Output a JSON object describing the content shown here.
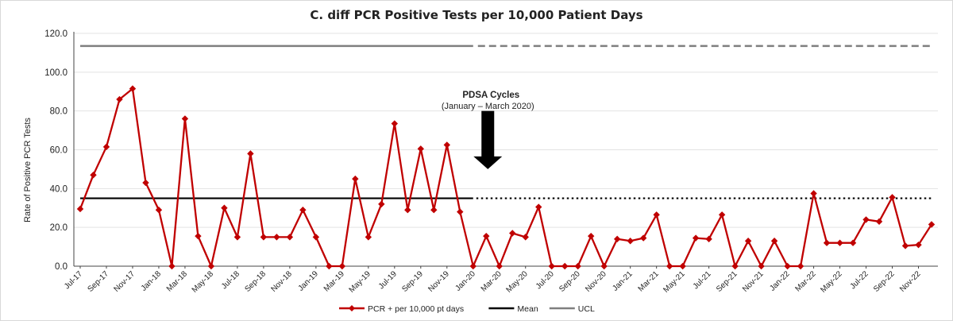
{
  "chart_data": {
    "type": "line",
    "title": "C. diff PCR Positive Tests per 10,000 Patient Days",
    "ylabel": "Rate of Positive PCR Tests",
    "xlabel": "",
    "ylim": [
      0,
      120
    ],
    "y_ticks": [
      "0.0",
      "20.0",
      "40.0",
      "60.0",
      "80.0",
      "100.0",
      "120.0"
    ],
    "x": [
      "Jul-17",
      "Aug-17",
      "Sep-17",
      "Oct-17",
      "Nov-17",
      "Dec-17",
      "Jan-18",
      "Feb-18",
      "Mar-18",
      "Apr-18",
      "May-18",
      "Jun-18",
      "Jul-18",
      "Aug-18",
      "Sep-18",
      "Oct-18",
      "Nov-18",
      "Dec-18",
      "Jan-19",
      "Feb-19",
      "Mar-19",
      "Apr-19",
      "May-19",
      "Jun-19",
      "Jul-19",
      "Aug-19",
      "Sep-19",
      "Oct-19",
      "Nov-19",
      "Dec-19",
      "Jan-20",
      "Feb-20",
      "Mar-20",
      "Apr-20",
      "May-20",
      "Jun-20",
      "Jul-20",
      "Aug-20",
      "Sep-20",
      "Oct-20",
      "Nov-20",
      "Dec-20",
      "Jan-21",
      "Feb-21",
      "Mar-21",
      "Apr-21",
      "May-21",
      "Jun-21",
      "Jul-21",
      "Aug-21",
      "Sep-21",
      "Oct-21",
      "Nov-21",
      "Dec-21",
      "Jan-22",
      "Feb-22",
      "Mar-22",
      "Apr-22",
      "May-22",
      "Jun-22",
      "Jul-22",
      "Aug-22",
      "Sep-22",
      "Oct-22",
      "Nov-22",
      "Dec-22"
    ],
    "x_tick_labels": [
      "Jul-17",
      "Sep-17",
      "Nov-17",
      "Jan-18",
      "Mar-18",
      "May-18",
      "Jul-18",
      "Sep-18",
      "Nov-18",
      "Jan-19",
      "Mar-19",
      "May-19",
      "Jul-19",
      "Sep-19",
      "Nov-19",
      "Jan-20",
      "Mar-20",
      "May-20",
      "Jul-20",
      "Sep-20",
      "Nov-20",
      "Jan-21",
      "Mar-21",
      "May-21",
      "Jul-21",
      "Sep-21",
      "Nov-21",
      "Jan-22",
      "Mar-22",
      "May-22",
      "Jul-22",
      "Sep-22",
      "Nov-22"
    ],
    "series": [
      {
        "name": "PCR + per 10,000 pt days",
        "color": "#c00000",
        "marker": "diamond",
        "values": [
          29.5,
          47,
          61.5,
          86,
          91.5,
          43,
          29,
          0,
          76,
          15.5,
          0,
          30,
          15,
          58,
          15,
          15,
          15,
          29,
          15,
          0,
          0,
          45,
          15,
          32,
          73.5,
          29,
          60.5,
          29,
          62.5,
          28,
          0,
          15.5,
          0,
          17,
          15,
          30.5,
          0,
          0,
          0,
          15.5,
          0,
          14,
          13,
          14.5,
          26.5,
          0,
          0,
          14.5,
          14,
          26.5,
          0,
          13,
          0,
          13,
          0,
          0,
          37.5,
          12,
          12,
          12,
          24,
          23,
          35.5,
          10.5,
          11,
          21.5
        ]
      },
      {
        "name": "Mean",
        "color": "#000000",
        "style": "solid until Jan-20, dotted after",
        "values_const": 35
      },
      {
        "name": "UCL",
        "color": "#7f7f7f",
        "style": "solid until Jan-20, dashed after",
        "values_const": 113.5
      }
    ],
    "annotation": {
      "title": "PDSA Cycles",
      "subtitle": "(January – March 2020)",
      "at": "Feb-20",
      "arrow_from_y": 80,
      "arrow_to_y": 50
    },
    "legend_position": "bottom-center",
    "grid": "horizontal-light"
  }
}
